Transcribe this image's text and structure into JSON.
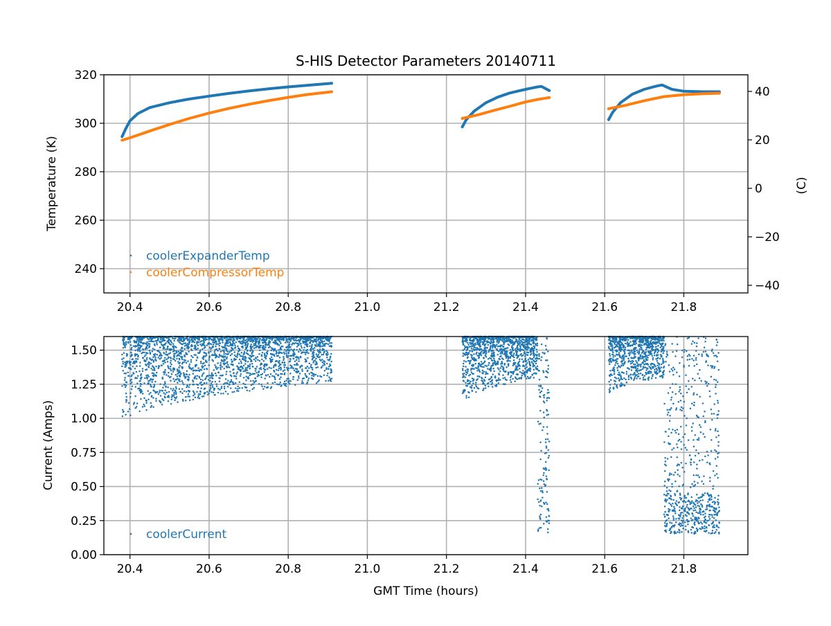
{
  "chart_data": [
    {
      "type": "scatter",
      "title": "S-HIS Detector Parameters 20140711",
      "xlabel": "",
      "ylabel": "Temperature (K)",
      "ylabel_right": "(C)",
      "xlim": [
        20.334,
        21.962
      ],
      "ylim": [
        230,
        320
      ],
      "ylim_right": [
        -43.15,
        46.85
      ],
      "grid": true,
      "legend_placement": "lower-left",
      "xticks": [
        "20.4",
        "20.6",
        "20.8",
        "21.0",
        "21.2",
        "21.4",
        "21.6",
        "21.8"
      ],
      "xtick_values": [
        20.4,
        20.6,
        20.8,
        21.0,
        21.2,
        21.4,
        21.6,
        21.8
      ],
      "yticks": [
        "240",
        "260",
        "280",
        "300",
        "320"
      ],
      "ytick_values": [
        240,
        260,
        280,
        300,
        320
      ],
      "yticks_right": [
        "−40",
        "−20",
        "0",
        "20",
        "40"
      ],
      "ytick_right_values": [
        -40,
        -20,
        0,
        20,
        40
      ],
      "series": [
        {
          "name": "coolerExpanderTemp",
          "color": "#1f77b4",
          "segments": [
            {
              "x": [
                20.38,
                20.39,
                20.4,
                20.42,
                20.45,
                20.5,
                20.55,
                20.6,
                20.65,
                20.7,
                20.75,
                20.8,
                20.85,
                20.91
              ],
              "y": [
                294.5,
                298.0,
                301.0,
                304.0,
                306.5,
                308.5,
                310.0,
                311.2,
                312.3,
                313.3,
                314.2,
                315.0,
                315.7,
                316.5
              ]
            },
            {
              "x": [
                21.24,
                21.25,
                21.27,
                21.3,
                21.33,
                21.36,
                21.4,
                21.43,
                21.44,
                21.46
              ],
              "y": [
                298.5,
                301.5,
                305.0,
                308.5,
                310.8,
                312.5,
                314.0,
                315.0,
                315.2,
                313.5
              ]
            },
            {
              "x": [
                21.61,
                21.62,
                21.64,
                21.67,
                21.7,
                21.73,
                21.745,
                21.77,
                21.8,
                21.85,
                21.89
              ],
              "y": [
                301.5,
                304.5,
                308.5,
                312.0,
                314.0,
                315.3,
                315.8,
                314.0,
                313.2,
                313.0,
                313.0
              ]
            }
          ]
        },
        {
          "name": "coolerCompressorTemp",
          "color": "#ff7f0e",
          "segments": [
            {
              "x": [
                20.38,
                20.4,
                20.45,
                20.5,
                20.55,
                20.6,
                20.65,
                20.7,
                20.75,
                20.8,
                20.85,
                20.91
              ],
              "y": [
                293.0,
                294.0,
                296.8,
                299.5,
                302.0,
                304.2,
                306.1,
                307.8,
                309.3,
                310.7,
                311.9,
                313.0
              ]
            },
            {
              "x": [
                21.24,
                21.28,
                21.32,
                21.36,
                21.4,
                21.43,
                21.46
              ],
              "y": [
                302.0,
                303.5,
                305.3,
                307.0,
                308.8,
                309.8,
                310.6
              ]
            },
            {
              "x": [
                21.61,
                21.65,
                21.7,
                21.75,
                21.8,
                21.85,
                21.89
              ],
              "y": [
                306.0,
                307.3,
                309.3,
                311.0,
                311.8,
                312.2,
                312.4
              ]
            }
          ]
        }
      ]
    },
    {
      "type": "scatter",
      "title": "",
      "xlabel": "GMT Time (hours)",
      "ylabel": "Current (Amps)",
      "xlim": [
        20.334,
        21.962
      ],
      "ylim": [
        0,
        1.6
      ],
      "grid": true,
      "legend_placement": "lower-left",
      "xticks": [
        "20.4",
        "20.6",
        "20.8",
        "21.0",
        "21.2",
        "21.4",
        "21.6",
        "21.8"
      ],
      "xtick_values": [
        20.4,
        20.6,
        20.8,
        21.0,
        21.2,
        21.4,
        21.6,
        21.8
      ],
      "yticks": [
        "0.00",
        "0.25",
        "0.50",
        "0.75",
        "1.00",
        "1.25",
        "1.50"
      ],
      "ytick_values": [
        0,
        0.25,
        0.5,
        0.75,
        1.0,
        1.25,
        1.5
      ],
      "series": [
        {
          "name": "coolerCurrent",
          "color": "#1f77b4",
          "clouds": [
            {
              "x_range": [
                20.38,
                20.91
              ],
              "lower_start": 0.95,
              "lower_end": 1.27,
              "upper": 1.6,
              "density": 2600,
              "dense_upper": true
            },
            {
              "x_range": [
                21.24,
                21.43
              ],
              "lower_start": 1.09,
              "lower_end": 1.3,
              "upper": 1.6,
              "density": 1200,
              "dense_upper": true
            },
            {
              "x_range": [
                21.61,
                21.75
              ],
              "lower_start": 1.17,
              "lower_end": 1.3,
              "upper": 1.6,
              "density": 900,
              "dense_upper": true
            }
          ],
          "sparse_bands": [
            {
              "x_range": [
                21.43,
                21.46
              ],
              "y_range": [
                0.15,
                1.6
              ],
              "density": 140
            },
            {
              "x_range": [
                21.75,
                21.89
              ],
              "y_range": [
                0.15,
                1.6
              ],
              "density": 700,
              "dense_low": [
                0.15,
                0.45
              ]
            }
          ]
        }
      ]
    }
  ]
}
